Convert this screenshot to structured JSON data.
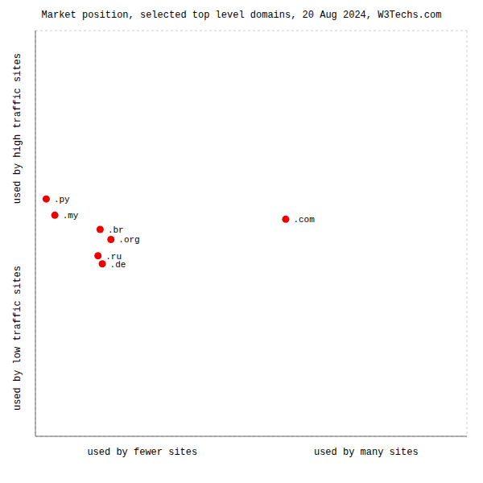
{
  "chart_data": {
    "type": "scatter",
    "title": "Market position, selected top level domains, 20 Aug 2024, W3Techs.com",
    "xlabel": [
      "used by fewer sites",
      "used by many sites"
    ],
    "ylabel": [
      "used by high traffic sites",
      "used by low traffic sites"
    ],
    "labels": [
      ".py",
      ".my",
      ".br",
      ".org",
      ".ru",
      ".de",
      ".com"
    ],
    "x": [
      2.5,
      4.5,
      15.0,
      17.5,
      14.5,
      15.5,
      58.0
    ],
    "values": [
      58.5,
      54.5,
      51.0,
      48.5,
      44.5,
      42.5,
      53.5
    ],
    "color": "#ee0000",
    "xlim": [
      0,
      100
    ],
    "ylim": [
      0,
      100
    ],
    "xticks": [
      0,
      10,
      20,
      30,
      40,
      50,
      60,
      70,
      80,
      90,
      100
    ],
    "yticks": [
      0,
      10,
      20,
      30,
      40,
      50,
      60,
      70,
      80,
      90,
      100
    ],
    "grid": true,
    "tick_labels": false
  }
}
